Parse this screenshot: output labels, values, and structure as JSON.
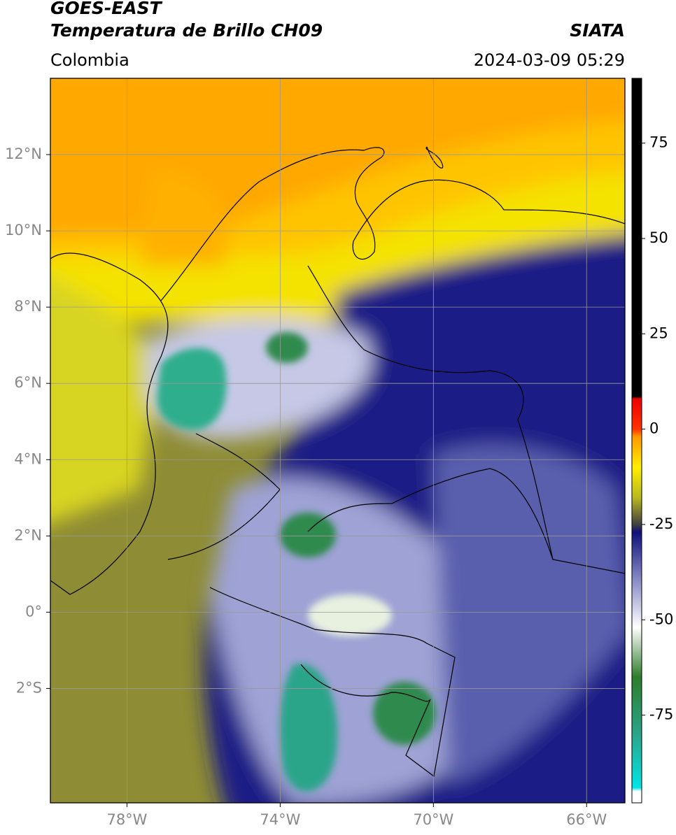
{
  "header": {
    "title": "GOES-EAST",
    "subtitle": "Temperatura de Brillo CH09",
    "source": "SIATA",
    "region": "Colombia",
    "datetime": "2024-03-09 05:29"
  },
  "map": {
    "xlim": [
      -80,
      -65
    ],
    "ylim": [
      -5,
      14
    ],
    "xticks": [
      {
        "value": -78,
        "label": "78°W"
      },
      {
        "value": -74,
        "label": "74°W"
      },
      {
        "value": -70,
        "label": "70°W"
      },
      {
        "value": -66,
        "label": "66°W"
      }
    ],
    "yticks": [
      {
        "value": 12,
        "label": "12°N"
      },
      {
        "value": 10,
        "label": "10°N"
      },
      {
        "value": 8,
        "label": "8°N"
      },
      {
        "value": 6,
        "label": "6°N"
      },
      {
        "value": 4,
        "label": "4°N"
      },
      {
        "value": 2,
        "label": "2°N"
      },
      {
        "value": 0,
        "label": "0°"
      },
      {
        "value": -2,
        "label": "2°S"
      }
    ],
    "grid": true
  },
  "colorbar": {
    "clim": [
      -98,
      92
    ],
    "ticks": [
      75,
      50,
      25,
      0,
      -25,
      -50,
      -75
    ],
    "colormap": [
      {
        "value": -98,
        "color": "#ffffff"
      },
      {
        "value": -95,
        "color": "#ffffff"
      },
      {
        "value": -94,
        "color": "#00e5e5"
      },
      {
        "value": -80,
        "color": "#2aa58a"
      },
      {
        "value": -65,
        "color": "#2e7d2a"
      },
      {
        "value": -52,
        "color": "#ffffff"
      },
      {
        "value": -40,
        "color": "#8c8fc8"
      },
      {
        "value": -27,
        "color": "#10107a"
      },
      {
        "value": -25,
        "color": "#404040"
      },
      {
        "value": -18,
        "color": "#b8b820"
      },
      {
        "value": -10,
        "color": "#ffee00"
      },
      {
        "value": -2,
        "color": "#ff9900"
      },
      {
        "value": 0,
        "color": "#ff3300"
      },
      {
        "value": 8,
        "color": "#ee0000"
      },
      {
        "value": 8.5,
        "color": "#000000"
      },
      {
        "value": 92,
        "color": "#000000"
      }
    ]
  }
}
